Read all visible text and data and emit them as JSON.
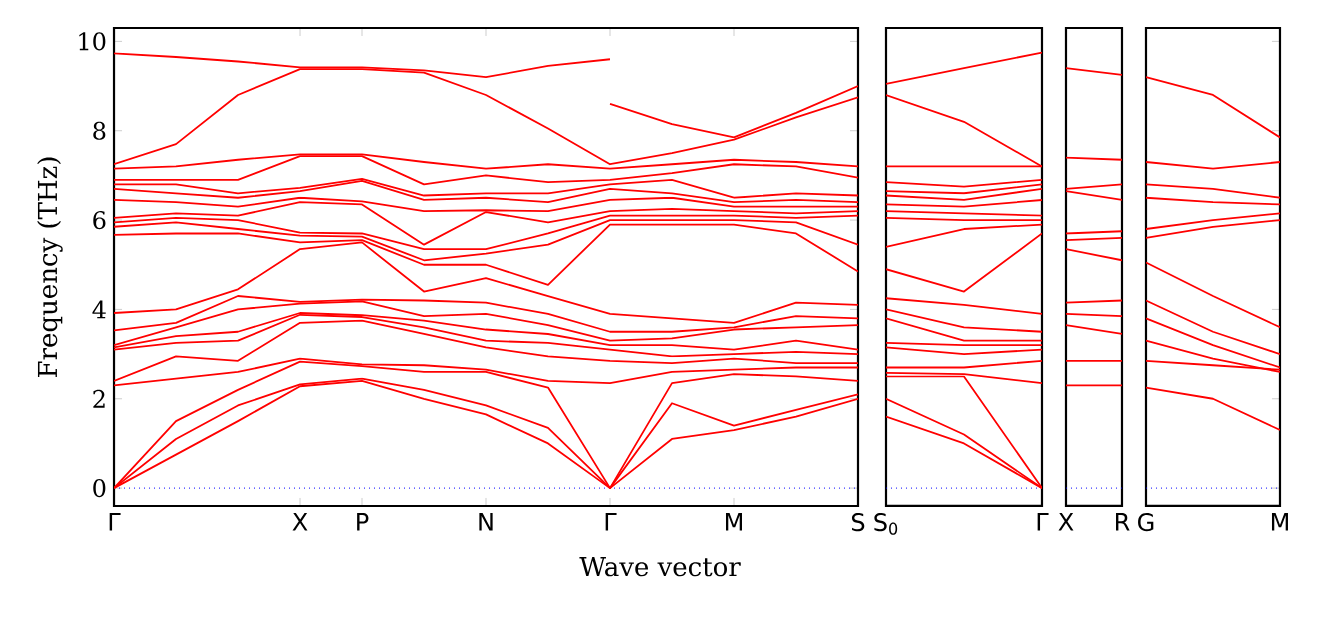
{
  "chart_data": [
    {
      "type": "line",
      "ylabel": "Frequency (THz)",
      "xlabel": "Wave vector",
      "categories": [
        "Γ",
        null,
        null,
        "X",
        "P",
        null,
        "N",
        null,
        "Γ",
        null,
        "M",
        null,
        "S"
      ],
      "ylim": [
        -0.4,
        10.3
      ],
      "yticks": [
        0,
        2,
        4,
        6,
        8,
        10
      ],
      "ref_lines": [
        {
          "axis": "y",
          "value": 0,
          "color": "#0000ff",
          "line_style": "dotted"
        }
      ],
      "series": [
        {
          "color": "#ff0000",
          "values": [
            0,
            0.75,
            1.5,
            2.28,
            2.4,
            2.0,
            1.65,
            1.0,
            0,
            1.1,
            1.3,
            1.6,
            2.0
          ]
        },
        {
          "color": "#ff0000",
          "values": [
            0,
            1.1,
            1.85,
            2.32,
            2.45,
            2.2,
            1.85,
            1.35,
            0,
            1.9,
            1.4,
            1.75,
            2.1
          ]
        },
        {
          "color": "#ff0000",
          "values": [
            0,
            1.5,
            2.2,
            2.83,
            2.73,
            2.6,
            2.6,
            2.25,
            0,
            2.35,
            2.55,
            2.5,
            2.4
          ]
        },
        {
          "color": "#ff0000",
          "values": [
            2.3,
            2.45,
            2.6,
            2.9,
            2.77,
            2.75,
            2.65,
            2.4,
            2.35,
            2.6,
            2.65,
            2.7,
            2.7
          ]
        },
        {
          "color": "#ff0000",
          "values": [
            2.4,
            2.95,
            2.85,
            3.7,
            3.75,
            3.45,
            3.15,
            2.95,
            2.85,
            2.8,
            2.9,
            2.8,
            2.8
          ]
        },
        {
          "color": "#ff0000",
          "values": [
            3.1,
            3.25,
            3.3,
            3.88,
            3.83,
            3.6,
            3.3,
            3.25,
            3.1,
            2.95,
            3.0,
            3.05,
            3.0
          ]
        },
        {
          "color": "#ff0000",
          "values": [
            3.15,
            3.4,
            3.5,
            3.92,
            3.87,
            3.75,
            3.55,
            3.45,
            3.2,
            3.2,
            3.1,
            3.3,
            3.1
          ]
        },
        {
          "color": "#ff0000",
          "values": [
            3.2,
            3.6,
            4.0,
            4.13,
            4.18,
            3.85,
            3.9,
            3.65,
            3.3,
            3.35,
            3.55,
            3.6,
            3.65
          ]
        },
        {
          "color": "#ff0000",
          "values": [
            3.53,
            3.7,
            4.3,
            4.17,
            4.22,
            4.2,
            4.15,
            3.9,
            3.5,
            3.5,
            3.6,
            3.85,
            3.8
          ]
        },
        {
          "color": "#ff0000",
          "values": [
            3.92,
            4.0,
            4.45,
            5.35,
            5.5,
            4.4,
            4.7,
            4.3,
            3.9,
            3.8,
            3.7,
            4.15,
            4.1
          ]
        },
        {
          "color": "#ff0000",
          "values": [
            5.67,
            5.7,
            5.7,
            5.5,
            5.55,
            5.0,
            5.0,
            4.55,
            5.9,
            5.9,
            5.9,
            5.7,
            4.85
          ]
        },
        {
          "color": "#ff0000",
          "values": [
            5.85,
            5.95,
            5.8,
            5.65,
            5.63,
            5.1,
            5.25,
            5.45,
            6.0,
            6.0,
            6.0,
            5.95,
            5.45
          ]
        },
        {
          "color": "#ff0000",
          "values": [
            5.95,
            6.05,
            6.0,
            5.72,
            5.7,
            5.35,
            5.35,
            5.7,
            6.1,
            6.1,
            6.1,
            6.05,
            6.1
          ]
        },
        {
          "color": "#ff0000",
          "values": [
            6.05,
            6.15,
            6.1,
            6.4,
            6.35,
            5.45,
            6.18,
            5.95,
            6.2,
            6.25,
            6.2,
            6.15,
            6.2
          ]
        },
        {
          "color": "#ff0000",
          "values": [
            6.45,
            6.4,
            6.3,
            6.5,
            6.42,
            6.2,
            6.22,
            6.2,
            6.45,
            6.5,
            6.3,
            6.3,
            6.3
          ]
        },
        {
          "color": "#ff0000",
          "values": [
            6.7,
            6.6,
            6.5,
            6.65,
            6.88,
            6.45,
            6.5,
            6.4,
            6.7,
            6.6,
            6.4,
            6.45,
            6.4
          ]
        },
        {
          "color": "#ff0000",
          "values": [
            6.8,
            6.8,
            6.6,
            6.72,
            6.92,
            6.55,
            6.6,
            6.6,
            6.8,
            6.9,
            6.5,
            6.6,
            6.55
          ]
        },
        {
          "color": "#ff0000",
          "values": [
            6.9,
            6.9,
            6.9,
            7.43,
            7.43,
            6.8,
            7.0,
            6.85,
            6.9,
            7.05,
            7.25,
            7.2,
            6.95
          ]
        },
        {
          "color": "#ff0000",
          "values": [
            7.15,
            7.2,
            7.35,
            7.47,
            7.47,
            7.3,
            7.15,
            7.25,
            7.15,
            7.25,
            7.35,
            7.3,
            7.2
          ]
        },
        {
          "color": "#ff0000",
          "values": [
            7.25,
            7.7,
            8.8,
            9.38,
            9.38,
            9.3,
            8.8,
            8.05,
            7.25,
            7.5,
            7.8,
            8.3,
            8.75
          ]
        },
        {
          "color": "#ff0000",
          "values": [
            9.73,
            9.65,
            9.55,
            9.42,
            9.42,
            9.35,
            9.2,
            9.45,
            9.6,
            null,
            null,
            null,
            null
          ]
        },
        {
          "color": "#ff0000",
          "values": [
            null,
            null,
            null,
            null,
            null,
            null,
            null,
            null,
            8.6,
            8.15,
            7.85,
            8.4,
            9.0
          ]
        }
      ]
    },
    {
      "type": "line",
      "categories": [
        "S$_{0}$",
        null,
        "Γ"
      ],
      "tick_labels": "x",
      "ylim": [
        -0.4,
        10.3
      ],
      "yticks": [
        0,
        2,
        4,
        6,
        8,
        10
      ],
      "ref_lines": [
        {
          "axis": "y",
          "value": 0,
          "color": "#0000ff",
          "line_style": "dotted"
        }
      ],
      "series": [
        {
          "color": "#ff0000",
          "values": [
            1.6,
            1.0,
            0
          ]
        },
        {
          "color": "#ff0000",
          "values": [
            2.0,
            1.2,
            0
          ]
        },
        {
          "color": "#ff0000",
          "values": [
            2.5,
            2.5,
            0
          ]
        },
        {
          "color": "#ff0000",
          "values": [
            2.58,
            2.55,
            2.35
          ]
        },
        {
          "color": "#ff0000",
          "values": [
            2.7,
            2.7,
            2.85
          ]
        },
        {
          "color": "#ff0000",
          "values": [
            3.15,
            3.0,
            3.1
          ]
        },
        {
          "color": "#ff0000",
          "values": [
            3.25,
            3.2,
            3.2
          ]
        },
        {
          "color": "#ff0000",
          "values": [
            3.8,
            3.3,
            3.3
          ]
        },
        {
          "color": "#ff0000",
          "values": [
            4.0,
            3.6,
            3.5
          ]
        },
        {
          "color": "#ff0000",
          "values": [
            4.25,
            4.1,
            3.9
          ]
        },
        {
          "color": "#ff0000",
          "values": [
            4.9,
            4.4,
            5.7
          ]
        },
        {
          "color": "#ff0000",
          "values": [
            5.4,
            5.8,
            5.9
          ]
        },
        {
          "color": "#ff0000",
          "values": [
            6.05,
            6.0,
            6.0
          ]
        },
        {
          "color": "#ff0000",
          "values": [
            6.2,
            6.15,
            6.1
          ]
        },
        {
          "color": "#ff0000",
          "values": [
            6.35,
            6.3,
            6.45
          ]
        },
        {
          "color": "#ff0000",
          "values": [
            6.55,
            6.45,
            6.7
          ]
        },
        {
          "color": "#ff0000",
          "values": [
            6.65,
            6.6,
            6.8
          ]
        },
        {
          "color": "#ff0000",
          "values": [
            6.85,
            6.75,
            6.9
          ]
        },
        {
          "color": "#ff0000",
          "values": [
            7.2,
            7.2,
            7.2
          ]
        },
        {
          "color": "#ff0000",
          "values": [
            8.8,
            8.2,
            7.2
          ]
        },
        {
          "color": "#ff0000",
          "values": [
            9.05,
            9.4,
            9.75
          ]
        }
      ]
    },
    {
      "type": "line",
      "categories": [
        "X",
        "R"
      ],
      "tick_labels": "x",
      "ylim": [
        -0.4,
        10.3
      ],
      "yticks": [
        0,
        2,
        4,
        6,
        8,
        10
      ],
      "ref_lines": [
        {
          "axis": "y",
          "value": 0,
          "color": "#0000ff",
          "line_style": "dotted"
        }
      ],
      "series": [
        {
          "color": "#ff0000",
          "values": [
            2.3,
            2.3
          ]
        },
        {
          "color": "#ff0000",
          "values": [
            2.85,
            2.85
          ]
        },
        {
          "color": "#ff0000",
          "values": [
            3.65,
            3.45
          ]
        },
        {
          "color": "#ff0000",
          "values": [
            3.9,
            3.85
          ]
        },
        {
          "color": "#ff0000",
          "values": [
            4.15,
            4.2
          ]
        },
        {
          "color": "#ff0000",
          "values": [
            5.35,
            5.1
          ]
        },
        {
          "color": "#ff0000",
          "values": [
            5.55,
            5.6
          ]
        },
        {
          "color": "#ff0000",
          "values": [
            5.7,
            5.75
          ]
        },
        {
          "color": "#ff0000",
          "values": [
            6.65,
            6.45
          ]
        },
        {
          "color": "#ff0000",
          "values": [
            6.7,
            6.8
          ]
        },
        {
          "color": "#ff0000",
          "values": [
            7.4,
            7.35
          ]
        },
        {
          "color": "#ff0000",
          "values": [
            9.4,
            9.25
          ]
        }
      ]
    },
    {
      "type": "line",
      "categories": [
        "G",
        null,
        "M"
      ],
      "tick_labels": "x",
      "ylim": [
        -0.4,
        10.3
      ],
      "yticks": [
        0,
        2,
        4,
        6,
        8,
        10
      ],
      "ref_lines": [
        {
          "axis": "y",
          "value": 0,
          "color": "#0000ff",
          "line_style": "dotted"
        }
      ],
      "series": [
        {
          "color": "#ff0000",
          "values": [
            2.25,
            2.0,
            1.3
          ]
        },
        {
          "color": "#ff0000",
          "values": [
            2.85,
            2.75,
            2.65
          ]
        },
        {
          "color": "#ff0000",
          "values": [
            3.3,
            2.9,
            2.6
          ]
        },
        {
          "color": "#ff0000",
          "values": [
            3.8,
            3.2,
            2.7
          ]
        },
        {
          "color": "#ff0000",
          "values": [
            4.2,
            3.5,
            3.0
          ]
        },
        {
          "color": "#ff0000",
          "values": [
            5.05,
            4.3,
            3.6
          ]
        },
        {
          "color": "#ff0000",
          "values": [
            5.6,
            5.85,
            6.0
          ]
        },
        {
          "color": "#ff0000",
          "values": [
            5.8,
            6.0,
            6.15
          ]
        },
        {
          "color": "#ff0000",
          "values": [
            6.5,
            6.4,
            6.35
          ]
        },
        {
          "color": "#ff0000",
          "values": [
            6.8,
            6.7,
            6.5
          ]
        },
        {
          "color": "#ff0000",
          "values": [
            7.3,
            7.15,
            7.3
          ]
        },
        {
          "color": "#ff0000",
          "values": [
            9.2,
            8.8,
            7.85
          ]
        }
      ]
    }
  ]
}
